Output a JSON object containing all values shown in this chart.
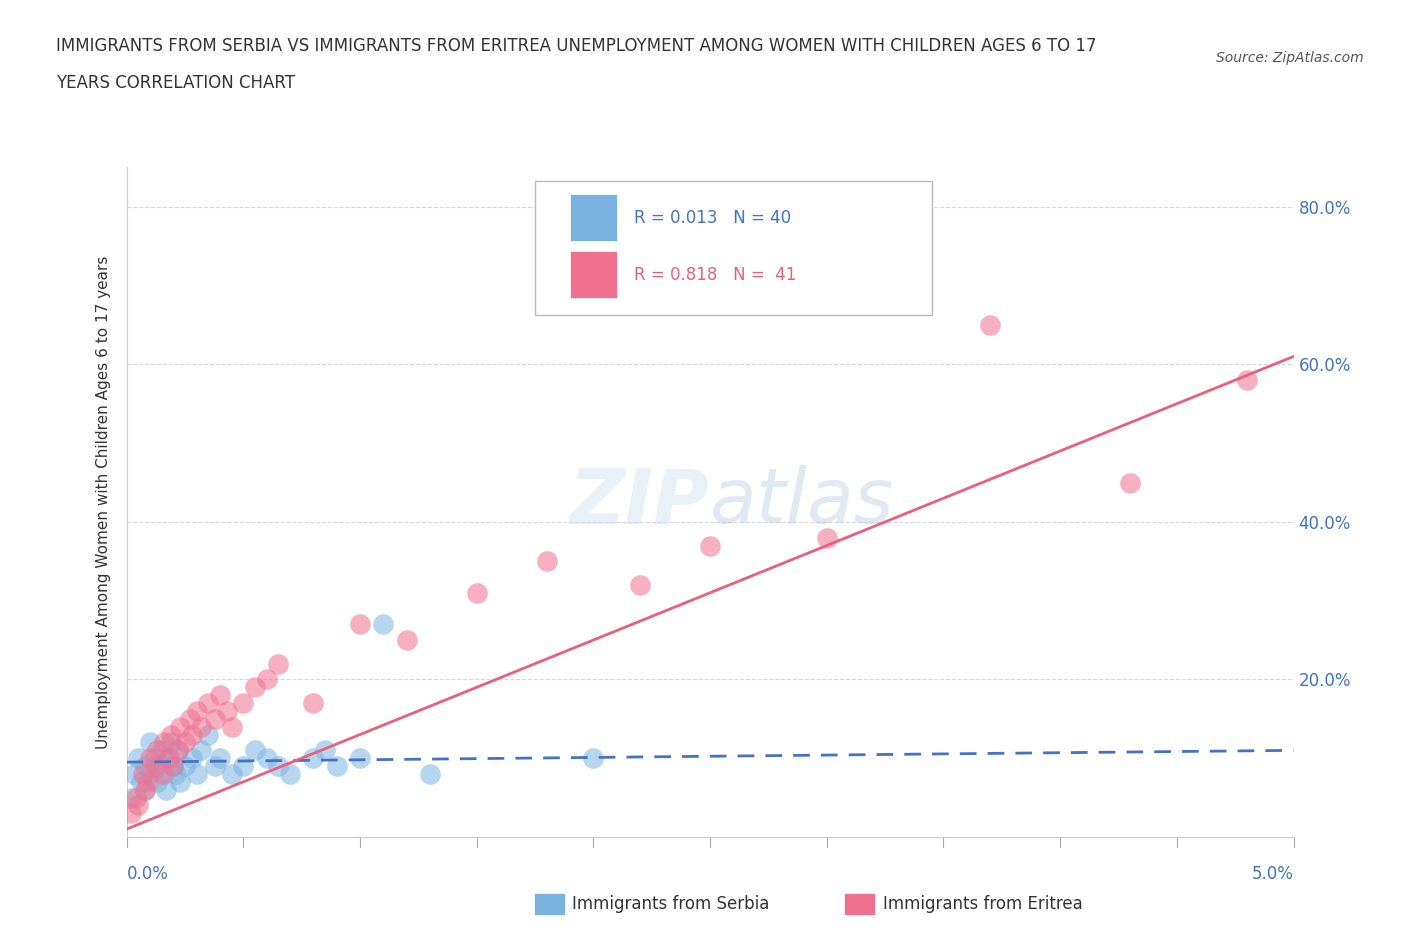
{
  "title_line1": "IMMIGRANTS FROM SERBIA VS IMMIGRANTS FROM ERITREA UNEMPLOYMENT AMONG WOMEN WITH CHILDREN AGES 6 TO 17",
  "title_line2": "YEARS CORRELATION CHART",
  "source": "Source: ZipAtlas.com",
  "ylabel": "Unemployment Among Women with Children Ages 6 to 17 years",
  "watermark": "ZIPatlas",
  "legend_entries": [
    {
      "label": "Immigrants from Serbia",
      "color": "#a8c8f0",
      "R": "0.013",
      "N": "40"
    },
    {
      "label": "Immigrants from Eritrea",
      "color": "#f0a8b8",
      "R": "0.818",
      "N": "41"
    }
  ],
  "serbia_line_color": "#4472c4",
  "eritrea_line_color": "#e8607a",
  "scatter_serbia_color": "#7ab3e0",
  "scatter_eritrea_color": "#f07090",
  "grid_color": "#cccccc",
  "background_color": "#ffffff",
  "serbia_scatter_x": [
    0.02,
    0.03,
    0.05,
    0.06,
    0.08,
    0.08,
    0.1,
    0.1,
    0.12,
    0.13,
    0.14,
    0.15,
    0.16,
    0.17,
    0.18,
    0.19,
    0.2,
    0.21,
    0.22,
    0.23,
    0.25,
    0.28,
    0.3,
    0.32,
    0.35,
    0.38,
    0.4,
    0.45,
    0.5,
    0.55,
    0.6,
    0.65,
    0.7,
    0.8,
    0.85,
    0.9,
    1.0,
    1.1,
    1.3,
    2.0
  ],
  "serbia_scatter_y": [
    5,
    8,
    10,
    7,
    6,
    9,
    12,
    8,
    10,
    7,
    9,
    11,
    8,
    6,
    10,
    12,
    9,
    8,
    11,
    7,
    9,
    10,
    8,
    11,
    13,
    9,
    10,
    8,
    9,
    11,
    10,
    9,
    8,
    10,
    11,
    9,
    10,
    27,
    8,
    10
  ],
  "eritrea_scatter_x": [
    0.02,
    0.04,
    0.05,
    0.07,
    0.08,
    0.09,
    0.1,
    0.12,
    0.13,
    0.15,
    0.16,
    0.18,
    0.19,
    0.2,
    0.22,
    0.23,
    0.25,
    0.27,
    0.28,
    0.3,
    0.32,
    0.35,
    0.38,
    0.4,
    0.43,
    0.45,
    0.5,
    0.55,
    0.6,
    0.65,
    0.8,
    1.0,
    1.2,
    1.5,
    1.8,
    2.2,
    2.5,
    3.0,
    3.7,
    4.3,
    4.8
  ],
  "eritrea_scatter_y": [
    3,
    5,
    4,
    8,
    6,
    7,
    10,
    9,
    11,
    8,
    12,
    10,
    13,
    9,
    11,
    14,
    12,
    15,
    13,
    16,
    14,
    17,
    15,
    18,
    16,
    14,
    17,
    19,
    20,
    22,
    17,
    27,
    25,
    31,
    35,
    32,
    37,
    38,
    65,
    45,
    58
  ]
}
